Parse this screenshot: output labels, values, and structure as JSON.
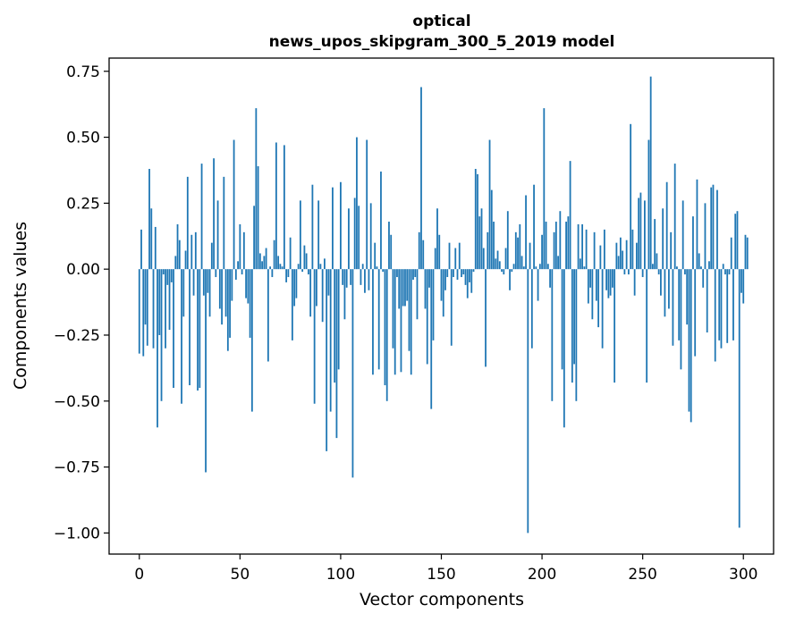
{
  "chart_data": {
    "type": "bar",
    "title_line1": "optical",
    "title_line2": "news_upos_skipgram_300_5_2019 model",
    "xlabel": "Vector components",
    "ylabel": "Components values",
    "xlim": [
      -15,
      315
    ],
    "ylim": [
      -1.08,
      0.8
    ],
    "x_ticks": [
      0,
      50,
      100,
      150,
      200,
      250,
      300
    ],
    "x_tick_labels": [
      "0",
      "50",
      "100",
      "150",
      "200",
      "250",
      "300"
    ],
    "y_ticks": [
      0.75,
      0.5,
      0.25,
      0.0,
      -0.25,
      -0.5,
      -0.75,
      -1.0
    ],
    "y_tick_labels": [
      "0.75",
      "0.50",
      "0.25",
      "0.00",
      "−0.25",
      "−0.50",
      "−0.75",
      "−1.00"
    ],
    "bar_color": "#1f77b4",
    "values": [
      -0.32,
      0.15,
      -0.33,
      -0.21,
      -0.29,
      0.38,
      0.23,
      -0.3,
      0.16,
      -0.6,
      -0.25,
      -0.5,
      -0.02,
      -0.3,
      -0.06,
      -0.23,
      -0.05,
      -0.45,
      0.05,
      0.17,
      0.11,
      -0.51,
      -0.18,
      0.07,
      0.35,
      -0.44,
      0.13,
      -0.1,
      0.14,
      -0.46,
      -0.45,
      0.4,
      -0.1,
      -0.77,
      -0.09,
      -0.18,
      0.1,
      0.42,
      -0.03,
      0.26,
      -0.15,
      -0.21,
      0.35,
      -0.18,
      -0.31,
      -0.26,
      -0.12,
      0.49,
      -0.04,
      0.03,
      0.17,
      -0.02,
      0.14,
      -0.11,
      -0.13,
      -0.26,
      -0.54,
      0.24,
      0.61,
      0.39,
      0.06,
      0.03,
      0.05,
      0.08,
      -0.35,
      0.01,
      -0.03,
      0.11,
      0.48,
      0.05,
      0.02,
      0.01,
      0.47,
      -0.05,
      -0.03,
      0.12,
      -0.27,
      -0.14,
      -0.11,
      0.02,
      0.26,
      -0.01,
      0.09,
      0.06,
      -0.02,
      -0.18,
      0.32,
      -0.51,
      -0.14,
      0.26,
      0.02,
      -0.2,
      0.04,
      -0.69,
      -0.1,
      -0.54,
      0.31,
      -0.43,
      -0.64,
      -0.38,
      0.33,
      -0.06,
      -0.19,
      -0.07,
      0.23,
      -0.06,
      -0.79,
      0.27,
      0.5,
      0.24,
      -0.06,
      0.02,
      -0.09,
      0.49,
      -0.08,
      0.25,
      -0.4,
      0.1,
      0.01,
      -0.38,
      0.37,
      -0.01,
      -0.44,
      -0.5,
      0.18,
      0.13,
      -0.3,
      -0.4,
      -0.03,
      -0.15,
      -0.39,
      -0.14,
      -0.14,
      -0.12,
      -0.31,
      -0.4,
      -0.04,
      -0.03,
      -0.19,
      0.14,
      0.69,
      0.11,
      -0.15,
      -0.36,
      -0.07,
      -0.53,
      -0.27,
      0.08,
      0.23,
      0.13,
      -0.12,
      -0.18,
      -0.08,
      -0.03,
      0.1,
      -0.29,
      -0.03,
      0.08,
      -0.04,
      0.1,
      -0.03,
      -0.02,
      -0.06,
      -0.11,
      -0.05,
      -0.09,
      -0.01,
      0.38,
      0.36,
      0.2,
      0.23,
      0.08,
      -0.37,
      0.14,
      0.49,
      0.3,
      0.18,
      0.04,
      0.07,
      0.03,
      -0.01,
      -0.02,
      0.08,
      0.22,
      -0.08,
      -0.01,
      0.02,
      0.14,
      0.12,
      0.17,
      0.05,
      0.01,
      0.28,
      -1.0,
      0.1,
      -0.3,
      0.32,
      0.01,
      -0.12,
      0.02,
      0.13,
      0.61,
      0.18,
      0.02,
      -0.07,
      -0.5,
      0.14,
      0.18,
      0.05,
      0.22,
      -0.38,
      -0.6,
      0.18,
      0.2,
      0.41,
      -0.43,
      -0.36,
      -0.5,
      0.17,
      0.04,
      0.17,
      0.01,
      0.15,
      -0.13,
      -0.07,
      -0.19,
      0.14,
      -0.12,
      -0.22,
      0.09,
      -0.3,
      0.15,
      -0.08,
      -0.11,
      -0.1,
      -0.07,
      -0.43,
      0.1,
      0.05,
      0.12,
      0.07,
      -0.02,
      0.11,
      -0.02,
      0.55,
      0.15,
      -0.1,
      0.1,
      0.27,
      0.29,
      -0.03,
      0.26,
      -0.43,
      0.49,
      0.73,
      0.02,
      0.19,
      0.06,
      -0.02,
      -0.1,
      0.23,
      -0.18,
      0.33,
      -0.15,
      0.14,
      -0.29,
      0.4,
      0.01,
      -0.27,
      -0.38,
      0.26,
      -0.02,
      -0.21,
      -0.54,
      -0.58,
      0.2,
      -0.33,
      0.34,
      0.06,
      0.01,
      -0.07,
      0.25,
      -0.24,
      0.03,
      0.31,
      0.32,
      -0.35,
      0.3,
      -0.27,
      -0.3,
      0.02,
      -0.02,
      -0.28,
      -0.02,
      0.12,
      -0.27,
      0.21,
      0.22,
      -0.98,
      -0.09,
      -0.13,
      0.13,
      0.12
    ]
  }
}
